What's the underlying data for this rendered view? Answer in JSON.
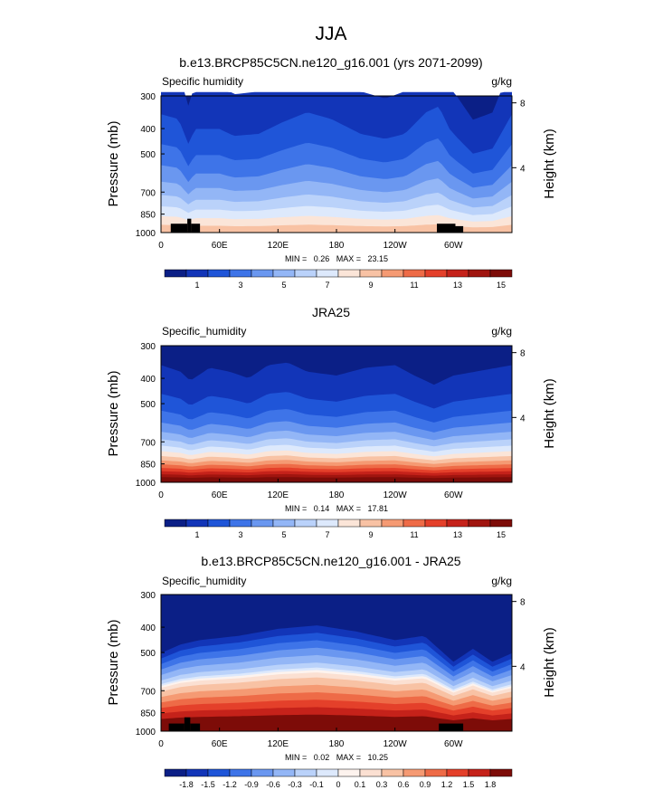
{
  "figure": {
    "title": "JJA"
  },
  "colors": {
    "abs": [
      "#0b1f86",
      "#1235b8",
      "#1f55d8",
      "#3e74e8",
      "#6a97f0",
      "#93b6f6",
      "#bad2fa",
      "#dde9fc",
      "#fbe5d8",
      "#f8c2a4",
      "#f59a73",
      "#ee6b47",
      "#e4402a",
      "#c5221a",
      "#a0150f",
      "#7d0c08"
    ],
    "diff": [
      "#0b1f86",
      "#1235b8",
      "#1f55d8",
      "#3e74e8",
      "#6a97f0",
      "#93b6f6",
      "#bad2fa",
      "#dde9fc",
      "#fdf3ee",
      "#fbe0d2",
      "#f8c2a4",
      "#f59a73",
      "#ee6b47",
      "#e4402a",
      "#c5221a",
      "#7d0c08"
    ],
    "land": "#000000",
    "dark": "#7d0c08"
  },
  "chart_data": [
    {
      "type": "heatmap",
      "title": "b.e13.BRCP85C5CN.ne120_g16.001 (yrs 2071-2099)",
      "variable": "Specific humidity",
      "units": "g/kg",
      "ylabel": "Pressure (mb)",
      "ylabel_right": "Height (km)",
      "x_ticks": [
        "0",
        "60E",
        "120E",
        "180",
        "120W",
        "60W"
      ],
      "x_tick_values": [
        0,
        60,
        120,
        180,
        240,
        300
      ],
      "xlim": [
        0,
        360
      ],
      "p_ticks": [
        "300",
        "400",
        "500",
        "700",
        "850",
        "1000"
      ],
      "p_tick_values": [
        300,
        400,
        500,
        700,
        850,
        1000
      ],
      "height_ticks": [
        "8",
        "4"
      ],
      "height_tick_values": [
        8,
        4
      ],
      "stats": "MIN =   0.26   MAX =   23.15",
      "colorbar_labels": [
        "1",
        "3",
        "5",
        "7",
        "9",
        "11",
        "13",
        "15"
      ],
      "field": {
        "levels": [
          1,
          2,
          3,
          4,
          5,
          6,
          7,
          8,
          9,
          10,
          11,
          12,
          13,
          14,
          15
        ],
        "surface": 10,
        "scale_height": 2.8,
        "shape": [
          [
            0,
            1.2
          ],
          [
            18,
            1.15
          ],
          [
            28,
            0.9
          ],
          [
            35,
            1.05
          ],
          [
            60,
            1.05
          ],
          [
            75,
            0.98
          ],
          [
            100,
            1.0
          ],
          [
            125,
            1.12
          ],
          [
            150,
            1.22
          ],
          [
            175,
            1.15
          ],
          [
            205,
            1.0
          ],
          [
            230,
            0.95
          ],
          [
            250,
            1.0
          ],
          [
            272,
            1.22
          ],
          [
            285,
            1.28
          ],
          [
            296,
            1.05
          ],
          [
            305,
            0.95
          ],
          [
            320,
            0.8
          ],
          [
            340,
            0.85
          ],
          [
            360,
            1.2
          ]
        ]
      },
      "land": [
        [
          10,
          27,
          1000,
          925
        ],
        [
          27,
          31,
          1000,
          885
        ],
        [
          31,
          40,
          1000,
          925
        ],
        [
          283,
          302,
          1000,
          925
        ],
        [
          302,
          310,
          1000,
          945
        ]
      ],
      "colors": "abs"
    },
    {
      "type": "heatmap",
      "title": "JRA25",
      "variable": "Specific_humidity",
      "units": "g/kg",
      "ylabel": "Pressure (mb)",
      "ylabel_right": "Height (km)",
      "x_ticks": [
        "0",
        "60E",
        "120E",
        "180",
        "120W",
        "60W"
      ],
      "x_tick_values": [
        0,
        60,
        120,
        180,
        240,
        300
      ],
      "xlim": [
        0,
        360
      ],
      "p_ticks": [
        "300",
        "400",
        "500",
        "700",
        "850",
        "1000"
      ],
      "p_tick_values": [
        300,
        400,
        500,
        700,
        850,
        1000
      ],
      "height_ticks": [
        "8",
        "4"
      ],
      "height_tick_values": [
        8,
        4
      ],
      "stats": "MIN =   0.14   MAX =   17.81",
      "colorbar_labels": [
        "1",
        "3",
        "5",
        "7",
        "9",
        "11",
        "13",
        "15"
      ],
      "field": {
        "levels": [
          1,
          2,
          3,
          4,
          5,
          6,
          7,
          8,
          9,
          10,
          11,
          12,
          13,
          14,
          15
        ],
        "surface": 17,
        "scale_height": 2.1,
        "shape": [
          [
            0,
            0.9
          ],
          [
            20,
            0.85
          ],
          [
            30,
            0.78
          ],
          [
            50,
            0.88
          ],
          [
            70,
            0.85
          ],
          [
            90,
            0.8
          ],
          [
            110,
            0.9
          ],
          [
            130,
            0.92
          ],
          [
            150,
            0.85
          ],
          [
            180,
            0.82
          ],
          [
            210,
            0.88
          ],
          [
            240,
            0.9
          ],
          [
            260,
            0.82
          ],
          [
            280,
            0.75
          ],
          [
            300,
            0.82
          ],
          [
            330,
            0.86
          ],
          [
            360,
            0.9
          ]
        ]
      },
      "land": [],
      "colors": "abs"
    },
    {
      "type": "heatmap",
      "title": "b.e13.BRCP85C5CN.ne120_g16.001 - JRA25",
      "variable": "Specific_humidity",
      "units": "g/kg",
      "ylabel": "Pressure (mb)",
      "ylabel_right": "Height (km)",
      "x_ticks": [
        "0",
        "60E",
        "120E",
        "180",
        "120W",
        "60W"
      ],
      "x_tick_values": [
        0,
        60,
        120,
        180,
        240,
        300
      ],
      "xlim": [
        0,
        360
      ],
      "p_ticks": [
        "300",
        "400",
        "500",
        "700",
        "850",
        "1000"
      ],
      "p_tick_values": [
        300,
        400,
        500,
        700,
        850,
        1000
      ],
      "height_ticks": [
        "8",
        "4"
      ],
      "height_tick_values": [
        8,
        4
      ],
      "stats": "MIN =   0.02   MAX =   10.25",
      "colorbar_labels": [
        "-1.8",
        "-1.5",
        "-1.2",
        "-0.9",
        "-0.6",
        "-0.3",
        "-0.1",
        "0",
        "0.1",
        "0.3",
        "0.6",
        "0.9",
        "1.2",
        "1.5",
        "1.8"
      ],
      "field": {
        "levels": [
          -1.8,
          -1.5,
          -1.2,
          -0.9,
          -0.6,
          -0.3,
          -0.1,
          0,
          0.1,
          0.3,
          0.6,
          0.9,
          1.2,
          1.5,
          1.8
        ],
        "surface": 4.2,
        "scale_height": 1.4,
        "shape": [
          [
            0,
            0.9
          ],
          [
            20,
            1.0
          ],
          [
            40,
            1.05
          ],
          [
            80,
            1.1
          ],
          [
            120,
            1.18
          ],
          [
            160,
            1.22
          ],
          [
            200,
            1.15
          ],
          [
            240,
            1.05
          ],
          [
            270,
            1.1
          ],
          [
            290,
            0.9
          ],
          [
            300,
            0.8
          ],
          [
            320,
            0.95
          ],
          [
            340,
            0.8
          ],
          [
            360,
            0.9
          ]
        ]
      },
      "land": [
        [
          8,
          24,
          1000,
          935
        ],
        [
          24,
          30,
          1000,
          885
        ],
        [
          30,
          40,
          1000,
          935
        ],
        [
          285,
          310,
          1000,
          935
        ]
      ],
      "colors": "diff"
    }
  ]
}
